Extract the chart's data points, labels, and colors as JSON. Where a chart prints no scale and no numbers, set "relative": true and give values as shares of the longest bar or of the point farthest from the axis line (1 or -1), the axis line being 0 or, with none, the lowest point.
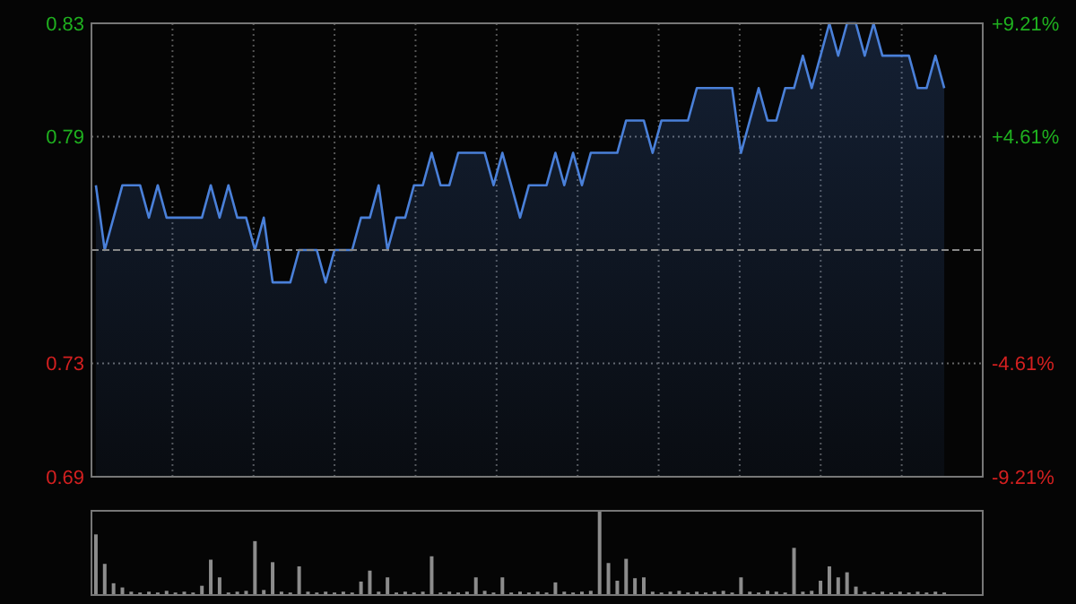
{
  "chart_data": [
    {
      "type": "area",
      "categories": [
        null,
        null,
        null,
        null,
        null,
        null,
        null,
        null,
        null,
        null,
        null,
        null,
        null,
        null,
        null,
        null,
        null,
        null,
        null,
        null,
        null,
        null,
        null,
        null,
        null,
        null,
        null,
        null,
        null,
        null,
        null,
        null,
        null,
        null,
        null,
        null,
        null,
        null,
        null,
        null,
        null,
        null,
        null,
        null,
        null,
        null,
        null,
        null,
        null,
        null,
        null,
        null,
        null,
        null,
        null,
        null,
        null,
        null,
        null,
        null,
        null,
        null,
        null,
        null,
        null,
        null,
        null,
        null,
        null,
        null,
        null,
        null,
        null,
        null,
        null,
        null,
        null,
        null,
        null,
        null,
        null,
        null,
        null,
        null,
        null,
        null,
        null,
        null,
        null,
        null,
        null,
        null,
        null,
        null,
        null,
        null,
        null
      ],
      "series": [
        {
          "color": "#4a80d9",
          "values": [
            0.78,
            0.76,
            0.77,
            0.78,
            0.78,
            0.78,
            0.77,
            0.78,
            0.77,
            0.77,
            0.77,
            0.77,
            0.77,
            0.78,
            0.77,
            0.78,
            0.77,
            0.77,
            0.76,
            0.77,
            0.75,
            0.75,
            0.75,
            0.76,
            0.76,
            0.76,
            0.75,
            0.76,
            0.76,
            0.76,
            0.77,
            0.77,
            0.78,
            0.76,
            0.77,
            0.77,
            0.78,
            0.78,
            0.79,
            0.78,
            0.78,
            0.79,
            0.79,
            0.79,
            0.79,
            0.78,
            0.79,
            0.78,
            0.77,
            0.78,
            0.78,
            0.78,
            0.79,
            0.78,
            0.79,
            0.78,
            0.79,
            0.79,
            0.79,
            0.79,
            0.8,
            0.8,
            0.8,
            0.79,
            0.8,
            0.8,
            0.8,
            0.8,
            0.81,
            0.81,
            0.81,
            0.81,
            0.81,
            0.79,
            0.8,
            0.81,
            0.8,
            0.8,
            0.81,
            0.81,
            0.82,
            0.81,
            0.82,
            0.83,
            0.82,
            0.83,
            0.83,
            0.82,
            0.83,
            0.82,
            0.82,
            0.82,
            0.82,
            0.81,
            0.81,
            0.82,
            0.81
          ]
        }
      ],
      "ylim": [
        0.69,
        0.83
      ],
      "yticks": [
        {
          "value": 0.69,
          "label": "0.69"
        },
        {
          "value": 0.725,
          "label": "0.73"
        },
        {
          "value": 0.76,
          "label": null
        },
        {
          "value": 0.795,
          "label": "0.79"
        },
        {
          "value": 0.83,
          "label": "0.83"
        }
      ],
      "y2lim": [
        -9.21,
        9.21
      ],
      "y2ticks": [
        {
          "value": -9.21,
          "label": "-9.21%"
        },
        {
          "value": -4.61,
          "label": "-4.61%"
        },
        {
          "value": 0,
          "label": null
        },
        {
          "value": 4.61,
          "label": "+4.61%"
        },
        {
          "value": 9.21,
          "label": "+9.21%"
        }
      ],
      "ref_lines": [
        {
          "axis": "y",
          "value": 0.76,
          "line_style": "dashed"
        }
      ],
      "grid": true
    },
    {
      "type": "bar",
      "relative": true,
      "color": "#8c8c8c",
      "categories": [
        null,
        null,
        null,
        null,
        null,
        null,
        null,
        null,
        null,
        null,
        null,
        null,
        null,
        null,
        null,
        null,
        null,
        null,
        null,
        null,
        null,
        null,
        null,
        null,
        null,
        null,
        null,
        null,
        null,
        null,
        null,
        null,
        null,
        null,
        null,
        null,
        null,
        null,
        null,
        null,
        null,
        null,
        null,
        null,
        null,
        null,
        null,
        null,
        null,
        null,
        null,
        null,
        null,
        null,
        null,
        null,
        null,
        null,
        null,
        null,
        null,
        null,
        null,
        null,
        null,
        null,
        null,
        null,
        null,
        null,
        null,
        null,
        null,
        null,
        null,
        null,
        null,
        null,
        null,
        null,
        null,
        null,
        null,
        null,
        null,
        null,
        null,
        null,
        null,
        null,
        null,
        null,
        null,
        null,
        null,
        null,
        null
      ],
      "values": [
        0.72,
        0.37,
        0.14,
        0.09,
        0.04,
        0.03,
        0.04,
        0.03,
        0.05,
        0.03,
        0.04,
        0.03,
        0.11,
        0.42,
        0.21,
        0.03,
        0.04,
        0.05,
        0.64,
        0.06,
        0.39,
        0.04,
        0.03,
        0.34,
        0.04,
        0.03,
        0.04,
        0.03,
        0.04,
        0.03,
        0.16,
        0.29,
        0.04,
        0.21,
        0.03,
        0.04,
        0.03,
        0.04,
        0.46,
        0.03,
        0.04,
        0.03,
        0.04,
        0.21,
        0.05,
        0.03,
        0.21,
        0.03,
        0.04,
        0.03,
        0.04,
        0.03,
        0.15,
        0.04,
        0.03,
        0.04,
        0.05,
        1.0,
        0.38,
        0.17,
        0.43,
        0.2,
        0.21,
        0.04,
        0.03,
        0.04,
        0.05,
        0.03,
        0.04,
        0.03,
        0.04,
        0.05,
        0.03,
        0.21,
        0.04,
        0.03,
        0.05,
        0.04,
        0.03,
        0.56,
        0.04,
        0.05,
        0.17,
        0.34,
        0.21,
        0.27,
        0.1,
        0.04,
        0.03,
        0.04,
        0.03,
        0.04,
        0.03,
        0.04,
        0.03,
        0.04,
        0.03
      ]
    }
  ]
}
